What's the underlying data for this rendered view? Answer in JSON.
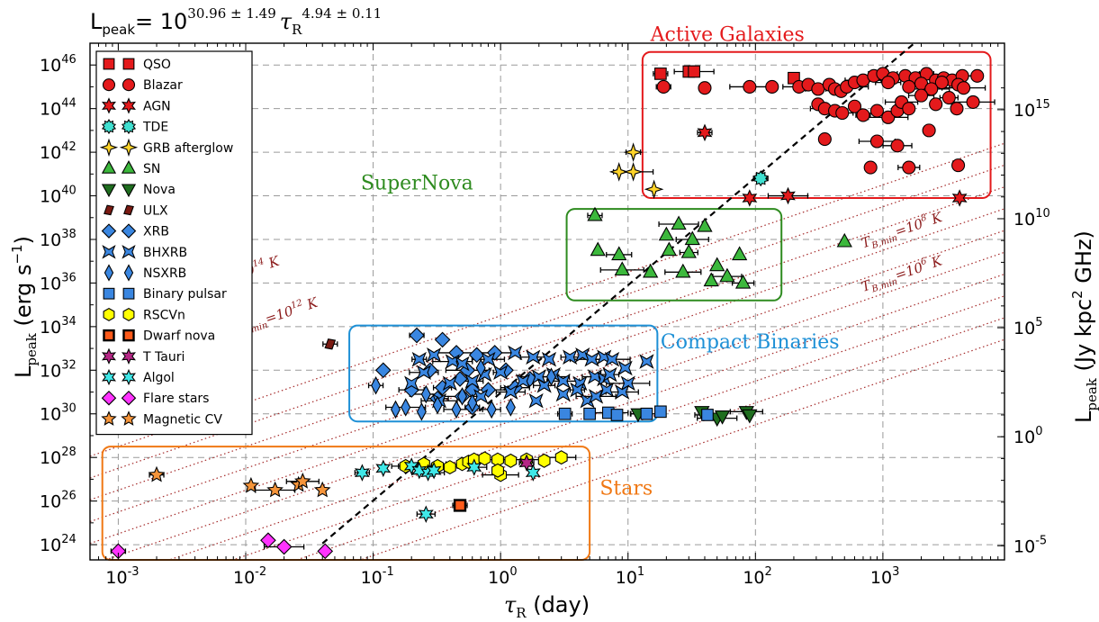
{
  "chart_data": {
    "type": "scatter",
    "title": "",
    "formula": {
      "lhs": "L",
      "lhs_sub": "peak",
      "eq": "= 10",
      "exp1": "30.96 ± 1.49",
      "tau": "τ",
      "tau_sub": "R",
      "exp2": "4.94 ± 0.11"
    },
    "xlabel": {
      "sym": "τ",
      "sub": "R",
      "rest": " (day)"
    },
    "ylabel": {
      "sym": "L",
      "sub": "peak",
      "rest": " (erg s",
      "sup": "−1",
      "end": ")"
    },
    "y2label": {
      "sym": "L",
      "sub": "peak",
      "rest": " (Jy kpc",
      "sup": "2",
      "end": " GHz)"
    },
    "x_scale": "log",
    "y_scale": "log",
    "xlim": [
      0.0006,
      9000
    ],
    "ylim": [
      2e+23,
      1e+47
    ],
    "grid": true,
    "x_ticks": [
      {
        "b": "10",
        "e": "-3"
      },
      {
        "b": "10",
        "e": "-2"
      },
      {
        "b": "10",
        "e": "-1"
      },
      {
        "b": "10",
        "e": "0"
      },
      {
        "b": "10",
        "e": "1"
      },
      {
        "b": "10",
        "e": "2"
      },
      {
        "b": "10",
        "e": "3"
      }
    ],
    "x_tick_values": [
      0.001,
      0.01,
      0.1,
      1,
      10,
      100,
      1000
    ],
    "y_ticks": [
      {
        "b": "10",
        "e": "24"
      },
      {
        "b": "10",
        "e": "26"
      },
      {
        "b": "10",
        "e": "28"
      },
      {
        "b": "10",
        "e": "30"
      },
      {
        "b": "10",
        "e": "32"
      },
      {
        "b": "10",
        "e": "34"
      },
      {
        "b": "10",
        "e": "36"
      },
      {
        "b": "10",
        "e": "38"
      },
      {
        "b": "10",
        "e": "40"
      },
      {
        "b": "10",
        "e": "42"
      },
      {
        "b": "10",
        "e": "44"
      },
      {
        "b": "10",
        "e": "46"
      }
    ],
    "y_tick_exps": [
      24,
      26,
      28,
      30,
      32,
      34,
      36,
      38,
      40,
      42,
      44,
      46
    ],
    "y2_ticks": [
      {
        "b": "10",
        "e": "-5"
      },
      {
        "b": "10",
        "e": "0"
      },
      {
        "b": "10",
        "e": "5"
      },
      {
        "b": "10",
        "e": "10"
      },
      {
        "b": "10",
        "e": "15"
      }
    ],
    "y2_tick_yexps": [
      23.95,
      28.95,
      33.95,
      38.95,
      43.95
    ],
    "fit_line": {
      "a": 30.96,
      "b": 4.94
    },
    "tb_lines": {
      "note": "L ∝ τ² dotted lines",
      "intercepts_logL_at_tau1": [
        25.5,
        26.5,
        27.5,
        28.5,
        29.5,
        30.5,
        31.5,
        32.5,
        33.5,
        34.5
      ]
    },
    "tb_labels": [
      {
        "text": "T",
        "sub": "B,min",
        "val": "=10",
        "sup": "14",
        "unit": " K",
        "tau": 0.004,
        "logL": 35.5
      },
      {
        "text": "T",
        "sub": "B,min",
        "val": "=10",
        "sup": "12",
        "unit": " K",
        "tau": 0.008,
        "logL": 33.6
      },
      {
        "text": "T",
        "sub": "B,min",
        "val": "=10",
        "sup": "8",
        "unit": " K",
        "tau": 700,
        "logL": 37.6
      },
      {
        "text": "T",
        "sub": "B,min",
        "val": "=10",
        "sup": "6",
        "unit": " K",
        "tau": 700,
        "logL": 35.6
      }
    ],
    "regions": [
      {
        "label": "Active Galaxies",
        "color": "#e41a1c",
        "xmin": 13,
        "xmax": 7000,
        "ymin": 39.9,
        "ymax": 46.6,
        "lab_tau": 15,
        "lab_logL": 47.1
      },
      {
        "label": "SuperNova",
        "color": "#2e8b1f",
        "xmin": 3.3,
        "xmax": 160,
        "ymin": 35.2,
        "ymax": 39.4,
        "lab_tau": 0.08,
        "lab_logL": 40.3
      },
      {
        "label": "Compact Binaries",
        "color": "#1e90d6",
        "xmin": 0.065,
        "xmax": 17,
        "ymin": 29.65,
        "ymax": 34.05,
        "lab_tau": 18,
        "lab_logL": 33.0
      },
      {
        "label": "Stars",
        "color": "#f07814",
        "xmin": 0.00075,
        "xmax": 5,
        "ymin": 23.3,
        "ymax": 28.5,
        "lab_tau": 6,
        "lab_logL": 26.3
      }
    ],
    "legend": [
      {
        "name": "QSO",
        "marker": "square",
        "color": "#e41a1c"
      },
      {
        "name": "Blazar",
        "marker": "circle",
        "color": "#e41a1c"
      },
      {
        "name": "AGN",
        "marker": "star6",
        "color": "#e41a1c"
      },
      {
        "name": "TDE",
        "marker": "burst",
        "color": "#40e0d0"
      },
      {
        "name": "GRB afterglow",
        "marker": "star4",
        "color": "#ffd42a"
      },
      {
        "name": "SN",
        "marker": "tri-up",
        "color": "#3cb83c"
      },
      {
        "name": "Nova",
        "marker": "tri-down",
        "color": "#1f6e1f"
      },
      {
        "name": "ULX",
        "marker": "diamond-thin",
        "color": "#7a1a12"
      },
      {
        "name": "XRB",
        "marker": "diamond",
        "color": "#3a86e0"
      },
      {
        "name": "BHXRB",
        "marker": "bowtie",
        "color": "#3a86e0"
      },
      {
        "name": "NSXRB",
        "marker": "diamond-tall",
        "color": "#3a86e0"
      },
      {
        "name": "Binary pulsar",
        "marker": "square",
        "color": "#3a86e0"
      },
      {
        "name": "RSCVn",
        "marker": "hexagon",
        "color": "#ffff00"
      },
      {
        "name": "Dwarf nova",
        "marker": "xsquare",
        "color": "#ff5a1a"
      },
      {
        "name": "T Tauri",
        "marker": "star6",
        "color": "#b52685"
      },
      {
        "name": "Algol",
        "marker": "star6",
        "color": "#40e8e8"
      },
      {
        "name": "Flare stars",
        "marker": "diamond",
        "color": "#ff33ff"
      },
      {
        "name": "Magnetic CV",
        "marker": "star5",
        "color": "#f5943a"
      }
    ],
    "series": [
      {
        "type_name": "QSO",
        "points": [
          [
            18,
            45.6
          ],
          [
            30,
            45.7
          ],
          [
            33,
            45.7
          ],
          [
            200,
            45.4
          ]
        ]
      },
      {
        "type_name": "Blazar",
        "points": [
          [
            19,
            45.0
          ],
          [
            40,
            44.95
          ],
          [
            90,
            45.0
          ],
          [
            135,
            45.0
          ],
          [
            220,
            45.0
          ],
          [
            260,
            45.1
          ],
          [
            310,
            44.9
          ],
          [
            380,
            45.1
          ],
          [
            420,
            44.9
          ],
          [
            470,
            44.8
          ],
          [
            520,
            45.0
          ],
          [
            600,
            45.2
          ],
          [
            700,
            45.3
          ],
          [
            850,
            45.5
          ],
          [
            1000,
            45.6
          ],
          [
            1200,
            45.4
          ],
          [
            1500,
            45.5
          ],
          [
            1800,
            45.4
          ],
          [
            2200,
            45.6
          ],
          [
            2600,
            45.3
          ],
          [
            3000,
            45.4
          ],
          [
            3500,
            45.3
          ],
          [
            4200,
            45.5
          ],
          [
            5500,
            45.5
          ],
          [
            1100,
            45.2
          ],
          [
            2000,
            45.15
          ],
          [
            2900,
            45.2
          ],
          [
            3900,
            45.1
          ],
          [
            4300,
            44.95
          ],
          [
            1600,
            45.0
          ],
          [
            2400,
            44.9
          ],
          [
            310,
            44.2
          ],
          [
            350,
            44.0
          ],
          [
            420,
            43.9
          ],
          [
            480,
            43.8
          ],
          [
            600,
            44.1
          ],
          [
            700,
            43.7
          ],
          [
            900,
            43.9
          ],
          [
            1100,
            43.6
          ],
          [
            1300,
            43.9
          ],
          [
            1400,
            44.3
          ],
          [
            1600,
            44.0
          ],
          [
            2000,
            44.6
          ],
          [
            2600,
            44.2
          ],
          [
            3300,
            44.5
          ],
          [
            3800,
            44.0
          ],
          [
            5100,
            44.3
          ],
          [
            2300,
            43.0
          ],
          [
            900,
            42.5
          ],
          [
            350,
            42.6
          ],
          [
            1300,
            42.3
          ],
          [
            3900,
            41.4
          ],
          [
            1600,
            41.3
          ],
          [
            800,
            41.3
          ]
        ]
      },
      {
        "type_name": "AGN",
        "points": [
          [
            40,
            42.9
          ],
          [
            90,
            39.9
          ],
          [
            180,
            40.0
          ],
          [
            4000,
            39.9
          ]
        ]
      },
      {
        "type_name": "TDE",
        "points": [
          [
            110,
            40.8
          ]
        ]
      },
      {
        "type_name": "GRB afterglow",
        "points": [
          [
            11,
            42.0
          ],
          [
            8.5,
            41.1
          ],
          [
            11,
            41.1
          ],
          [
            16,
            40.3
          ]
        ]
      },
      {
        "type_name": "SN",
        "points": [
          [
            5.5,
            39.1
          ],
          [
            20,
            38.2
          ],
          [
            25,
            38.7
          ],
          [
            40,
            38.6
          ],
          [
            32,
            38.0
          ],
          [
            5.8,
            37.5
          ],
          [
            8.5,
            37.3
          ],
          [
            21,
            37.5
          ],
          [
            30,
            37.4
          ],
          [
            75,
            37.3
          ],
          [
            9,
            36.6
          ],
          [
            15,
            36.5
          ],
          [
            27,
            36.5
          ],
          [
            50,
            36.8
          ],
          [
            60,
            36.3
          ],
          [
            45,
            36.1
          ],
          [
            80,
            36.0
          ],
          [
            500,
            37.9
          ]
        ]
      },
      {
        "type_name": "Nova",
        "points": [
          [
            12,
            30.0
          ],
          [
            38,
            30.1
          ],
          [
            50,
            29.8
          ],
          [
            55,
            29.9
          ],
          [
            85,
            30.1
          ],
          [
            90,
            29.95
          ]
        ]
      },
      {
        "type_name": "ULX",
        "points": [
          [
            0.046,
            33.2
          ]
        ]
      },
      {
        "type_name": "XRB",
        "points": [
          [
            0.22,
            33.6
          ],
          [
            0.35,
            33.4
          ],
          [
            0.45,
            32.8
          ],
          [
            0.65,
            32.7
          ],
          [
            0.9,
            32.8
          ],
          [
            0.12,
            32.0
          ],
          [
            0.2,
            31.1
          ],
          [
            0.28,
            32.0
          ],
          [
            0.35,
            31.2
          ],
          [
            0.48,
            31.6
          ],
          [
            0.55,
            32.0
          ],
          [
            0.6,
            31.1
          ],
          [
            0.8,
            31.1
          ],
          [
            1.1,
            32.0
          ],
          [
            1.3,
            31.2
          ],
          [
            1.7,
            31.6
          ],
          [
            0.32,
            30.7
          ],
          [
            0.5,
            30.8
          ],
          [
            0.6,
            30.3
          ]
        ]
      },
      {
        "type_name": "BHXRB",
        "points": [
          [
            0.23,
            32.5
          ],
          [
            0.3,
            32.7
          ],
          [
            0.42,
            32.4
          ],
          [
            0.5,
            32.3
          ],
          [
            0.8,
            32.5
          ],
          [
            1.3,
            32.8
          ],
          [
            1.8,
            32.6
          ],
          [
            2.4,
            32.5
          ],
          [
            3.5,
            32.6
          ],
          [
            4.4,
            32.7
          ],
          [
            5.2,
            32.5
          ],
          [
            6.5,
            32.6
          ],
          [
            7.5,
            32.5
          ],
          [
            14,
            32.4
          ],
          [
            0.25,
            31.9
          ],
          [
            0.4,
            31.4
          ],
          [
            0.6,
            31.5
          ],
          [
            0.75,
            31.8
          ],
          [
            1.0,
            31.9
          ],
          [
            1.5,
            31.5
          ],
          [
            2.0,
            31.7
          ],
          [
            2.6,
            31.8
          ],
          [
            3.1,
            31.5
          ],
          [
            4.2,
            31.4
          ],
          [
            5.5,
            31.7
          ],
          [
            6.5,
            31.6
          ],
          [
            7.2,
            31.8
          ],
          [
            9.5,
            32.1
          ],
          [
            10,
            31.4
          ],
          [
            0.2,
            31.4
          ],
          [
            0.33,
            30.6
          ],
          [
            0.7,
            30.8
          ],
          [
            1.2,
            31.0
          ],
          [
            1.9,
            30.6
          ],
          [
            2.2,
            31.3
          ],
          [
            3.1,
            30.9
          ],
          [
            4.0,
            31.1
          ],
          [
            4.8,
            30.6
          ],
          [
            5.6,
            30.8
          ],
          [
            6.8,
            31.1
          ],
          [
            9,
            31.0
          ]
        ]
      },
      {
        "type_name": "NSXRB",
        "points": [
          [
            0.105,
            31.3
          ],
          [
            0.15,
            30.2
          ],
          [
            0.18,
            30.3
          ],
          [
            0.24,
            30.1
          ],
          [
            0.26,
            30.9
          ],
          [
            0.32,
            30.4
          ],
          [
            0.45,
            30.2
          ],
          [
            0.6,
            30.5
          ],
          [
            0.85,
            30.2
          ],
          [
            1.2,
            30.3
          ],
          [
            0.5,
            30.8
          ],
          [
            0.7,
            32.1
          ],
          [
            2.5,
            31.7
          ]
        ]
      },
      {
        "type_name": "Binary pulsar",
        "points": [
          [
            3.2,
            30.0
          ],
          [
            5.0,
            30.0
          ],
          [
            7.0,
            30.05
          ],
          [
            8.2,
            29.95
          ],
          [
            14,
            30.0
          ],
          [
            18,
            30.1
          ],
          [
            42,
            29.95
          ]
        ]
      },
      {
        "type_name": "RSCVn",
        "points": [
          [
            0.18,
            27.6
          ],
          [
            0.25,
            27.7
          ],
          [
            0.32,
            27.6
          ],
          [
            0.4,
            27.55
          ],
          [
            0.5,
            27.7
          ],
          [
            0.56,
            27.8
          ],
          [
            0.62,
            27.9
          ],
          [
            0.75,
            27.95
          ],
          [
            0.95,
            27.9
          ],
          [
            1.2,
            27.85
          ],
          [
            1.6,
            27.9
          ],
          [
            2.2,
            27.85
          ],
          [
            1.0,
            27.2
          ],
          [
            0.95,
            27.4
          ],
          [
            3.0,
            28.0
          ]
        ]
      },
      {
        "type_name": "Dwarf nova",
        "points": [
          [
            0.48,
            25.8
          ]
        ]
      },
      {
        "type_name": "T Tauri",
        "points": [
          [
            1.6,
            27.75
          ]
        ]
      },
      {
        "type_name": "Algol",
        "points": [
          [
            0.082,
            27.3
          ],
          [
            0.12,
            27.5
          ],
          [
            0.2,
            27.6
          ],
          [
            0.23,
            27.4
          ],
          [
            0.27,
            27.3
          ],
          [
            0.3,
            27.4
          ],
          [
            0.62,
            27.55
          ],
          [
            1.8,
            27.3
          ],
          [
            0.26,
            25.4
          ]
        ]
      },
      {
        "type_name": "Flare stars",
        "points": [
          [
            0.001,
            23.7
          ],
          [
            0.015,
            24.2
          ],
          [
            0.02,
            23.9
          ],
          [
            0.042,
            23.7
          ]
        ]
      },
      {
        "type_name": "Magnetic CV",
        "points": [
          [
            0.002,
            27.2
          ],
          [
            0.011,
            26.7
          ],
          [
            0.017,
            26.5
          ],
          [
            0.026,
            26.75
          ],
          [
            0.028,
            26.9
          ],
          [
            0.04,
            26.5
          ]
        ]
      }
    ]
  }
}
